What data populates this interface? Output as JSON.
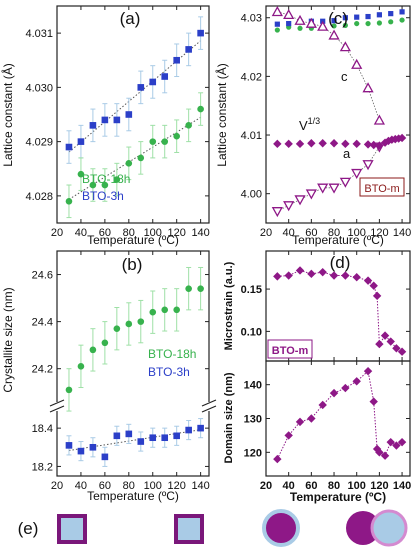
{
  "colors": {
    "blue": "#2b3fc8",
    "green": "#37b24d",
    "greenLight": "#9ee0a6",
    "blueLight": "#a9cbe6",
    "purple": "#8e1887",
    "purpleLight": "#d48ad0",
    "purpleDark": "#7a177a",
    "axis": "#222222",
    "maroon": "#8b1a1a"
  },
  "chart_data": [
    {
      "panel": "(a)",
      "type": "scatter",
      "xlabel": "Temperature (ºC)",
      "ylabel": "Lattice constant (Å)",
      "xlim": [
        20,
        147
      ],
      "ylim": [
        4.0275,
        4.0315
      ],
      "xticks": [
        "20",
        "40",
        "60",
        "80",
        "100",
        "120",
        "140"
      ],
      "yticks": [
        "4.028",
        "4.029",
        "4.030",
        "4.031"
      ],
      "legend": [
        "BTO-18h",
        "BTO-3h"
      ],
      "series": [
        {
          "name": "BTO-3h",
          "color": "blue",
          "marker": "square",
          "fit": "dotted",
          "x": [
            30,
            40,
            50,
            60,
            70,
            80,
            90,
            100,
            110,
            120,
            130,
            140
          ],
          "y": [
            4.0289,
            4.029,
            4.0293,
            4.0294,
            4.0294,
            4.0295,
            4.03,
            4.0301,
            4.0302,
            4.0305,
            4.0307,
            4.031
          ],
          "err": [
            0.0003,
            0.0003,
            0.0003,
            0.0003,
            0.0003,
            0.0003,
            0.0003,
            0.0003,
            0.0003,
            0.0003,
            0.0003,
            0.0003
          ]
        },
        {
          "name": "BTO-18h",
          "color": "green",
          "marker": "circle",
          "fit": "dotted",
          "x": [
            30,
            40,
            50,
            60,
            70,
            80,
            90,
            100,
            110,
            120,
            130,
            140
          ],
          "y": [
            4.0279,
            4.0284,
            4.0282,
            4.0282,
            4.0283,
            4.0286,
            4.0287,
            4.029,
            4.029,
            4.0291,
            4.0293,
            4.0296
          ],
          "err": [
            0.0003,
            0.0003,
            0.0003,
            0.0003,
            0.0003,
            0.0003,
            0.0003,
            0.0003,
            0.0003,
            0.0003,
            0.0003,
            0.0003
          ]
        }
      ]
    },
    {
      "panel": "(b)",
      "type": "scatter",
      "xlabel": "Temperature (ºC)",
      "ylabel": "Crystallite size (nm)",
      "xlim": [
        20,
        147
      ],
      "ylim_upper": [
        24.05,
        24.7
      ],
      "ylim_lower": [
        18.15,
        18.5
      ],
      "xticks": [
        "20",
        "40",
        "60",
        "80",
        "100",
        "120",
        "140"
      ],
      "yticks_upper": [
        "24.2",
        "24.4",
        "24.6"
      ],
      "yticks_lower": [
        "18.2",
        "18.4"
      ],
      "legend": [
        "BTO-18h",
        "BTO-3h"
      ],
      "series": [
        {
          "name": "BTO-18h",
          "color": "green",
          "marker": "circle",
          "x": [
            30,
            40,
            50,
            60,
            70,
            80,
            90,
            100,
            110,
            120,
            130,
            140
          ],
          "y": [
            24.11,
            24.21,
            24.28,
            24.31,
            24.37,
            24.39,
            24.4,
            24.44,
            24.45,
            24.45,
            24.54,
            24.54
          ],
          "err": [
            0.09,
            0.09,
            0.09,
            0.09,
            0.09,
            0.09,
            0.09,
            0.09,
            0.09,
            0.09,
            0.09,
            0.09
          ]
        },
        {
          "name": "BTO-3h",
          "color": "blue",
          "marker": "square",
          "fit": "dotted",
          "x": [
            30,
            40,
            50,
            60,
            70,
            80,
            90,
            100,
            110,
            120,
            130,
            140
          ],
          "y": [
            18.31,
            18.28,
            18.3,
            18.25,
            18.36,
            18.37,
            18.33,
            18.35,
            18.35,
            18.36,
            18.39,
            18.4
          ],
          "err": [
            0.05,
            0.05,
            0.05,
            0.05,
            0.05,
            0.05,
            0.05,
            0.05,
            0.05,
            0.05,
            0.05,
            0.05
          ]
        }
      ]
    },
    {
      "panel": "(c)",
      "type": "scatter",
      "xlabel": "Temperature (ºC)",
      "ylabel": "Lattice constant (Å)",
      "xlim": [
        20,
        147
      ],
      "ylim": [
        3.995,
        4.032
      ],
      "xticks": [
        "20",
        "40",
        "60",
        "80",
        "100",
        "120",
        "140"
      ],
      "yticks": [
        "4.00",
        "4.01",
        "4.02",
        "4.03"
      ],
      "labels": [
        "c",
        "V¹ᐟ³",
        "a"
      ],
      "legend": [
        "BTO-m"
      ],
      "series": [
        {
          "name": "c",
          "color": "purple",
          "marker": "triangle-up-open",
          "x": [
            30,
            40,
            50,
            60,
            70,
            80,
            90,
            100,
            110,
            120
          ],
          "y": [
            4.031,
            4.0305,
            4.0295,
            4.029,
            4.0285,
            4.027,
            4.025,
            4.022,
            4.018,
            4.0125
          ]
        },
        {
          "name": "V¹ᐟ³",
          "color": "purple",
          "marker": "diamond",
          "x": [
            30,
            40,
            50,
            60,
            70,
            80,
            90,
            100,
            110,
            115,
            120,
            125,
            128,
            131,
            134,
            137,
            140
          ],
          "y": [
            4.0085,
            4.0085,
            4.0085,
            4.0086,
            4.0086,
            4.0086,
            4.0085,
            4.0085,
            4.0084,
            4.0083,
            4.0082,
            4.0087,
            4.009,
            4.0092,
            4.0093,
            4.0094,
            4.0095
          ]
        },
        {
          "name": "a",
          "color": "purple",
          "marker": "triangle-down-open",
          "x": [
            30,
            40,
            50,
            60,
            70,
            80,
            90,
            100,
            110,
            120
          ],
          "y": [
            3.997,
            3.998,
            3.999,
            4.0,
            4.001,
            4.001,
            4.002,
            4.0035,
            4.005,
            4.008
          ]
        },
        {
          "name": "BTO-18h",
          "color": "green",
          "marker": "circle",
          "x": [
            30,
            40,
            50,
            60,
            70,
            80,
            90,
            100,
            110,
            120,
            130,
            140
          ],
          "y": [
            4.0279,
            4.0284,
            4.0282,
            4.0282,
            4.0283,
            4.0286,
            4.0287,
            4.029,
            4.029,
            4.0291,
            4.0293,
            4.0296
          ]
        },
        {
          "name": "BTO-3h",
          "color": "blue",
          "marker": "square",
          "x": [
            30,
            40,
            50,
            60,
            70,
            80,
            90,
            100,
            110,
            120,
            130,
            140
          ],
          "y": [
            4.0289,
            4.029,
            4.0293,
            4.0294,
            4.0294,
            4.0295,
            4.03,
            4.0301,
            4.0302,
            4.0305,
            4.0307,
            4.031
          ]
        }
      ]
    },
    {
      "panel": "(d)",
      "type": "line",
      "xlabel": "Temperature (ºC)",
      "ylabel_top": "Microstrain (a.u.)",
      "ylabel_bottom": "Domain size (nm)",
      "xlim": [
        20,
        147
      ],
      "ylim_top": [
        0.065,
        0.195
      ],
      "ylim_bottom": [
        113,
        147
      ],
      "xticks": [
        "20",
        "40",
        "60",
        "80",
        "100",
        "120",
        "140"
      ],
      "yticks_top": [
        "0.10",
        "0.15"
      ],
      "yticks_bottom": [
        "120",
        "130",
        "140"
      ],
      "legend": [
        "BTO-m"
      ],
      "series": [
        {
          "name": "Microstrain",
          "color": "purple",
          "marker": "diamond",
          "x": [
            30,
            40,
            50,
            60,
            70,
            80,
            90,
            100,
            110,
            115,
            118,
            120,
            125,
            130,
            135,
            140
          ],
          "y": [
            0.165,
            0.166,
            0.172,
            0.168,
            0.17,
            0.166,
            0.166,
            0.164,
            0.16,
            0.154,
            0.142,
            0.085,
            0.095,
            0.088,
            0.08,
            0.076
          ]
        },
        {
          "name": "Domain size",
          "color": "purple",
          "marker": "diamond",
          "x": [
            30,
            40,
            50,
            60,
            70,
            80,
            90,
            100,
            110,
            115,
            118,
            120,
            125,
            130,
            135,
            140
          ],
          "y": [
            118,
            125,
            129,
            130,
            134,
            137.5,
            139,
            141,
            144,
            135,
            121,
            120,
            119,
            123,
            122,
            123
          ]
        }
      ]
    }
  ],
  "panel_labels": {
    "a": "(a)",
    "b": "(b)",
    "c": "(c)",
    "d": "(d)",
    "e": "(e)"
  },
  "axis_text": {
    "temperature": "Temperature (ºC)",
    "lattice": "Lattice constant (Å)",
    "crystallite": "Crystallite size (nm)",
    "microstrain": "Microstrain (a.u.)",
    "domain": "Domain size (nm)"
  },
  "legend_text": {
    "bto18h": "BTO-18h",
    "bto3h": "BTO-3h",
    "btom": "BTO-m"
  },
  "curve_labels": {
    "c": "c",
    "v": "V",
    "v_exp": "1/3",
    "a": "a"
  }
}
